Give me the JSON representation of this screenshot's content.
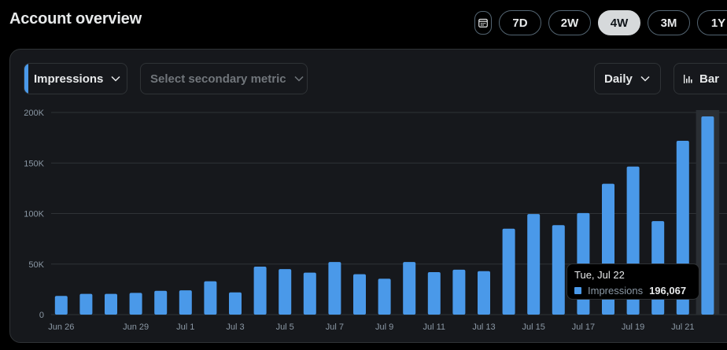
{
  "header": {
    "title": "Account overview"
  },
  "range": {
    "calendar_icon": "calendar-icon",
    "buttons": [
      {
        "label": "7D",
        "active": false
      },
      {
        "label": "2W",
        "active": false
      },
      {
        "label": "4W",
        "active": true
      },
      {
        "label": "3M",
        "active": false
      },
      {
        "label": "1Y",
        "active": false
      }
    ]
  },
  "controls": {
    "primary_metric": "Impressions",
    "secondary_metric": "Select secondary metric",
    "granularity": "Daily",
    "chart_type": "Bar"
  },
  "colors": {
    "bar": "#4a99e9",
    "background": "#16181c",
    "grid": "#2f3336",
    "active_button": "#d6d9db"
  },
  "chart_data": {
    "type": "bar",
    "series": [
      {
        "name": "Impressions",
        "values": [
          18500,
          20500,
          20500,
          21500,
          23500,
          24000,
          33000,
          22000,
          47500,
          45000,
          41500,
          52000,
          40000,
          35500,
          52000,
          42000,
          44500,
          43000,
          85000,
          99500,
          88500,
          100500,
          129500,
          146500,
          92500,
          172000,
          196067
        ]
      }
    ],
    "categories": [
      "Jun 26",
      "Jun 27",
      "Jun 28",
      "Jun 29",
      "Jun 30",
      "Jul 1",
      "Jul 2",
      "Jul 3",
      "Jul 4",
      "Jul 5",
      "Jul 6",
      "Jul 7",
      "Jul 8",
      "Jul 9",
      "Jul 10",
      "Jul 11",
      "Jul 12",
      "Jul 13",
      "Jul 14",
      "Jul 15",
      "Jul 16",
      "Jul 17",
      "Jul 18",
      "Jul 19",
      "Jul 20",
      "Jul 21",
      "Jul 22"
    ],
    "x_tick_labels": [
      "Jun 26",
      "Jun 29",
      "Jul 1",
      "Jul 3",
      "Jul 5",
      "Jul 7",
      "Jul 9",
      "Jul 11",
      "Jul 13",
      "Jul 15",
      "Jul 17",
      "Jul 19",
      "Jul 21"
    ],
    "y_ticks": [
      "0",
      "50K",
      "100K",
      "150K",
      "200K"
    ],
    "ylim": [
      0,
      200000
    ],
    "grid": true,
    "highlighted_index": 26
  },
  "tooltip": {
    "date": "Tue, Jul 22",
    "series_label": "Impressions",
    "value": "196,067"
  }
}
